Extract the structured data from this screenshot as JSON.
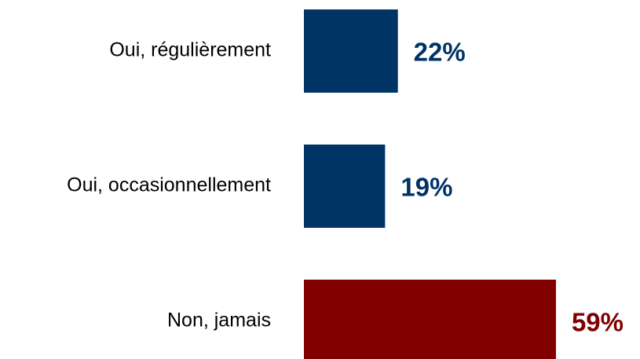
{
  "chart_data": {
    "type": "bar",
    "orientation": "horizontal",
    "categories": [
      "Oui, régulièrement",
      "Oui, occasionnellement",
      "Non, jamais"
    ],
    "values": [
      22,
      19,
      59
    ],
    "value_labels": [
      "22%",
      "19%",
      "59%"
    ],
    "colors": [
      "#003366",
      "#003366",
      "#800000"
    ]
  }
}
